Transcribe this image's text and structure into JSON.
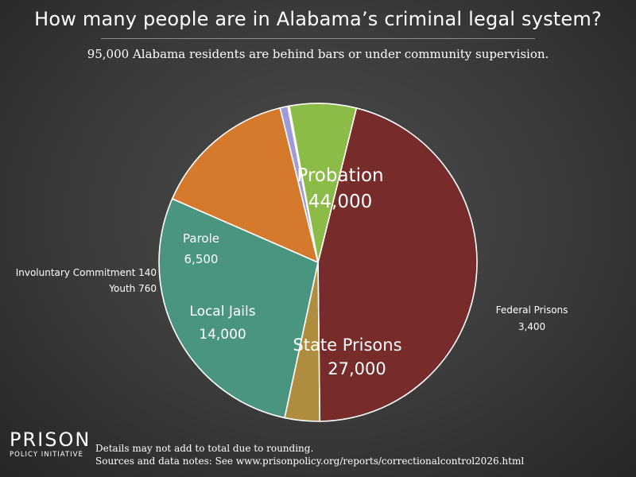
{
  "chart_data": {
    "type": "pie",
    "title": "How many people are in Alabama’s criminal legal system?",
    "subtitle": "95,000 Alabama residents are behind bars or under community supervision.",
    "slices": [
      {
        "name": "Probation",
        "value_label": "44,000",
        "value": 44000,
        "color": "#772b2b"
      },
      {
        "name": "Federal Prisons",
        "value_label": "3,400",
        "value": 3400,
        "color": "#b08c3e"
      },
      {
        "name": "State Prisons",
        "value_label": "27,000",
        "value": 27000,
        "color": "#4a9580"
      },
      {
        "name": "Local Jails",
        "value_label": "14,000",
        "value": 14000,
        "color": "#d5792c"
      },
      {
        "name": "Youth",
        "value_label": "760",
        "value": 760,
        "color": "#9f9ad8"
      },
      {
        "name": "Involuntary Commitment",
        "value_label": "140",
        "value": 140,
        "color": "#cfcfcf"
      },
      {
        "name": "Parole",
        "value_label": "6,500",
        "value": 6500,
        "color": "#8dbb47"
      }
    ]
  },
  "footer": {
    "logo_top": "PRISON",
    "logo_bottom": "POLICY INITIATIVE",
    "note_1": "Details may not add to total due to rounding.",
    "note_2": "Sources and data notes: See www.prisonpolicy.org/reports/correctionalcontrol2026.html"
  }
}
